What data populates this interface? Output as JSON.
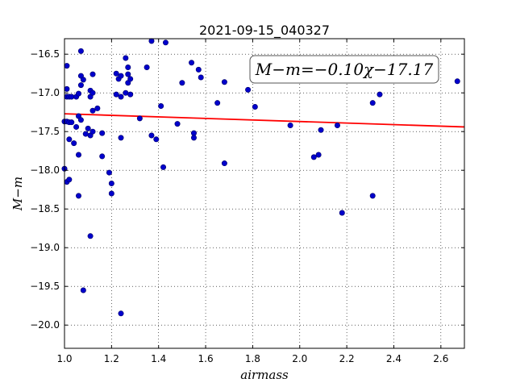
{
  "chart_data": {
    "type": "scatter",
    "title": "2021-09-15_040327",
    "xlabel": "airmass",
    "ylabel": "M−m",
    "xlim": [
      1.0,
      2.7
    ],
    "ylim": [
      -20.3,
      -16.3
    ],
    "x_ticks": [
      1.0,
      1.2,
      1.4,
      1.6,
      1.8,
      2.0,
      2.2,
      2.4,
      2.6
    ],
    "x_tick_labels": [
      "1.0",
      "1.2",
      "1.4",
      "1.6",
      "1.8",
      "2.0",
      "2.2",
      "2.4",
      "2.6"
    ],
    "y_ticks": [
      -16.5,
      -17.0,
      -17.5,
      -18.0,
      -18.5,
      -19.0,
      -19.5,
      -20.0
    ],
    "y_tick_labels": [
      "−16.5",
      "−17.0",
      "−17.5",
      "−18.0",
      "−18.5",
      "−19.0",
      "−19.5",
      "−20.0"
    ],
    "grid": true,
    "annotation": "M−m=−0.10χ−17.17",
    "fit": {
      "slope": -0.1,
      "intercept": -17.17,
      "color": "#ff0000"
    },
    "point_color": "#0000cc",
    "points": [
      [
        1.01,
        -16.65
      ],
      [
        1.01,
        -16.95
      ],
      [
        1.01,
        -17.05
      ],
      [
        1.02,
        -17.05
      ],
      [
        1.03,
        -17.05
      ],
      [
        1.0,
        -17.37
      ],
      [
        1.01,
        -17.37
      ],
      [
        1.02,
        -17.38
      ],
      [
        1.03,
        -17.38
      ],
      [
        1.0,
        -17.98
      ],
      [
        1.01,
        -18.15
      ],
      [
        1.02,
        -18.12
      ],
      [
        1.02,
        -17.6
      ],
      [
        1.04,
        -17.65
      ],
      [
        1.05,
        -17.44
      ],
      [
        1.05,
        -17.05
      ],
      [
        1.06,
        -17.01
      ],
      [
        1.06,
        -17.3
      ],
      [
        1.07,
        -17.35
      ],
      [
        1.07,
        -16.78
      ],
      [
        1.08,
        -16.83
      ],
      [
        1.07,
        -16.9
      ],
      [
        1.07,
        -16.46
      ],
      [
        1.06,
        -17.8
      ],
      [
        1.06,
        -18.33
      ],
      [
        1.08,
        -19.55
      ],
      [
        1.09,
        -17.53
      ],
      [
        1.1,
        -17.46
      ],
      [
        1.11,
        -17.05
      ],
      [
        1.11,
        -16.97
      ],
      [
        1.12,
        -17.0
      ],
      [
        1.11,
        -17.55
      ],
      [
        1.12,
        -17.5
      ],
      [
        1.12,
        -17.23
      ],
      [
        1.12,
        -16.76
      ],
      [
        1.11,
        -18.85
      ],
      [
        1.14,
        -17.2
      ],
      [
        1.16,
        -17.52
      ],
      [
        1.16,
        -17.82
      ],
      [
        1.19,
        -18.03
      ],
      [
        1.2,
        -18.17
      ],
      [
        1.2,
        -18.3
      ],
      [
        1.22,
        -16.75
      ],
      [
        1.22,
        -17.02
      ],
      [
        1.23,
        -16.82
      ],
      [
        1.24,
        -16.78
      ],
      [
        1.24,
        -17.05
      ],
      [
        1.24,
        -17.58
      ],
      [
        1.24,
        -19.85
      ],
      [
        1.26,
        -16.55
      ],
      [
        1.26,
        -17.0
      ],
      [
        1.27,
        -16.67
      ],
      [
        1.27,
        -16.76
      ],
      [
        1.27,
        -16.87
      ],
      [
        1.28,
        -16.82
      ],
      [
        1.28,
        -17.02
      ],
      [
        1.32,
        -17.33
      ],
      [
        1.35,
        -16.67
      ],
      [
        1.37,
        -16.33
      ],
      [
        1.37,
        -17.55
      ],
      [
        1.39,
        -17.6
      ],
      [
        1.41,
        -17.17
      ],
      [
        1.42,
        -17.96
      ],
      [
        1.43,
        -16.35
      ],
      [
        1.48,
        -17.4
      ],
      [
        1.5,
        -16.87
      ],
      [
        1.54,
        -16.61
      ],
      [
        1.55,
        -17.52
      ],
      [
        1.55,
        -17.58
      ],
      [
        1.57,
        -16.7
      ],
      [
        1.58,
        -16.8
      ],
      [
        1.65,
        -17.13
      ],
      [
        1.68,
        -16.86
      ],
      [
        1.68,
        -17.91
      ],
      [
        1.78,
        -16.96
      ],
      [
        1.81,
        -17.18
      ],
      [
        1.96,
        -17.42
      ],
      [
        2.06,
        -17.83
      ],
      [
        2.08,
        -17.8
      ],
      [
        2.09,
        -17.48
      ],
      [
        2.16,
        -17.42
      ],
      [
        2.18,
        -18.55
      ],
      [
        2.31,
        -17.13
      ],
      [
        2.31,
        -18.33
      ],
      [
        2.34,
        -17.02
      ],
      [
        2.67,
        -16.85
      ]
    ]
  }
}
